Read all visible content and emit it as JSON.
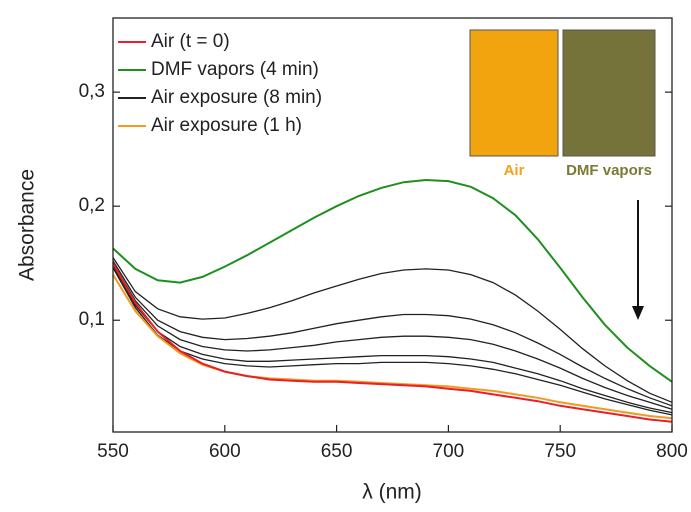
{
  "chart_data": {
    "type": "line",
    "xlabel": "λ (nm)",
    "ylabel": "Absorbance",
    "x": [
      550,
      560,
      570,
      580,
      590,
      600,
      610,
      620,
      630,
      640,
      650,
      660,
      670,
      680,
      690,
      700,
      710,
      720,
      730,
      740,
      750,
      760,
      770,
      780,
      790,
      800
    ],
    "xlim": [
      550,
      800
    ],
    "xticks": [
      550,
      600,
      650,
      700,
      750,
      800
    ],
    "ylim": [
      0.002,
      0.365
    ],
    "yticks": [
      {
        "value": 0.1,
        "label": "0,1"
      },
      {
        "value": 0.2,
        "label": "0,2"
      },
      {
        "value": 0.3,
        "label": "0,3"
      }
    ],
    "legend": "upper left",
    "series": [
      {
        "name": "Air (t = 0)",
        "color": "#e8202a",
        "values": [
          0.15,
          0.115,
          0.09,
          0.073,
          0.062,
          0.055,
          0.051,
          0.048,
          0.047,
          0.046,
          0.046,
          0.045,
          0.044,
          0.043,
          0.042,
          0.04,
          0.038,
          0.035,
          0.032,
          0.029,
          0.025,
          0.022,
          0.019,
          0.016,
          0.013,
          0.011
        ]
      },
      {
        "name": "DMF vapors (4 min)",
        "color": "#1f8f1f",
        "values": [
          0.163,
          0.145,
          0.135,
          0.133,
          0.138,
          0.147,
          0.157,
          0.168,
          0.179,
          0.19,
          0.2,
          0.209,
          0.216,
          0.221,
          0.223,
          0.222,
          0.217,
          0.207,
          0.192,
          0.171,
          0.146,
          0.12,
          0.096,
          0.076,
          0.06,
          0.046
        ]
      },
      {
        "name": "Air exposure (8 min)",
        "color": "#222222",
        "values": [
          0.155,
          0.125,
          0.11,
          0.103,
          0.101,
          0.102,
          0.106,
          0.111,
          0.117,
          0.124,
          0.13,
          0.136,
          0.141,
          0.144,
          0.145,
          0.144,
          0.14,
          0.133,
          0.122,
          0.108,
          0.092,
          0.075,
          0.06,
          0.047,
          0.036,
          0.028
        ]
      },
      {
        "name": "Air exposure (1 h)",
        "color": "#f39a1e",
        "values": [
          0.14,
          0.108,
          0.086,
          0.071,
          0.061,
          0.055,
          0.051,
          0.049,
          0.048,
          0.047,
          0.047,
          0.046,
          0.045,
          0.044,
          0.043,
          0.042,
          0.04,
          0.038,
          0.035,
          0.032,
          0.028,
          0.025,
          0.022,
          0.019,
          0.016,
          0.014
        ]
      },
      {
        "color": "#222222",
        "values": [
          0.152,
          0.12,
          0.1,
          0.09,
          0.085,
          0.083,
          0.084,
          0.086,
          0.089,
          0.093,
          0.097,
          0.1,
          0.103,
          0.105,
          0.105,
          0.104,
          0.101,
          0.096,
          0.089,
          0.08,
          0.07,
          0.059,
          0.049,
          0.04,
          0.032,
          0.025
        ]
      },
      {
        "color": "#222222",
        "values": [
          0.15,
          0.117,
          0.095,
          0.083,
          0.077,
          0.074,
          0.073,
          0.074,
          0.076,
          0.078,
          0.081,
          0.083,
          0.085,
          0.086,
          0.086,
          0.085,
          0.083,
          0.079,
          0.073,
          0.066,
          0.058,
          0.049,
          0.041,
          0.034,
          0.028,
          0.022
        ]
      },
      {
        "color": "#222222",
        "values": [
          0.148,
          0.113,
          0.09,
          0.077,
          0.07,
          0.066,
          0.064,
          0.064,
          0.065,
          0.066,
          0.067,
          0.068,
          0.069,
          0.069,
          0.069,
          0.068,
          0.066,
          0.063,
          0.058,
          0.053,
          0.047,
          0.04,
          0.034,
          0.028,
          0.023,
          0.019
        ]
      },
      {
        "color": "#222222",
        "values": [
          0.146,
          0.111,
          0.087,
          0.073,
          0.066,
          0.062,
          0.06,
          0.059,
          0.06,
          0.061,
          0.062,
          0.062,
          0.063,
          0.063,
          0.063,
          0.062,
          0.06,
          0.057,
          0.053,
          0.048,
          0.043,
          0.037,
          0.031,
          0.026,
          0.021,
          0.017
        ]
      }
    ],
    "inset_labels": [
      {
        "text": "Air",
        "color": "#f5a11a"
      },
      {
        "text": "DMF vapors",
        "color": "#7b7a35"
      }
    ]
  }
}
